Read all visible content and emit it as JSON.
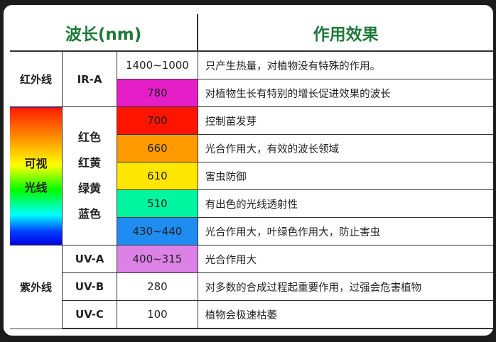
{
  "header": {
    "wavelength": "波长(nm)",
    "effect": "作用效果"
  },
  "groups": {
    "infrared": {
      "label": "红外线",
      "sub": "IR-A"
    },
    "visible": {
      "label_1": "可视",
      "label_2": "光线",
      "colors": [
        "红色",
        "红黄",
        "绿黄",
        "蓝色"
      ]
    },
    "ultraviolet": {
      "label": "紫外线"
    }
  },
  "rows": [
    {
      "wavelength": "1400~1000",
      "effect": "只产生热量，对植物没有特殊的作用。",
      "color": "#ffffff"
    },
    {
      "wavelength": "780",
      "effect": "对植物生长有特别的增长促进效果的波长",
      "color": "#e61ec8"
    },
    {
      "wavelength": "700",
      "effect": "控制苗发芽",
      "color": "#ff1400"
    },
    {
      "wavelength": "660",
      "effect": "光合作用大，有效的波长领域",
      "color": "#ff9b00"
    },
    {
      "wavelength": "610",
      "effect": "害虫防御",
      "color": "#ffe600"
    },
    {
      "wavelength": "510",
      "effect": "有出色的光线透射性",
      "color": "#00f5a0"
    },
    {
      "wavelength": "430~440",
      "effect": "光合作用大，叶绿色作用大，防止害虫",
      "color": "#1e8cf0"
    },
    {
      "sub": "UV-A",
      "wavelength": "400~315",
      "effect": "光合作用大",
      "color": "#dc82e6"
    },
    {
      "sub": "UV-B",
      "wavelength": "280",
      "effect": "对多数的合成过程起重要作用，过强会危害植物",
      "color": "#ffffff"
    },
    {
      "sub": "UV-C",
      "wavelength": "100",
      "effect": "植物会极速枯萎",
      "color": "#ffffff"
    }
  ]
}
